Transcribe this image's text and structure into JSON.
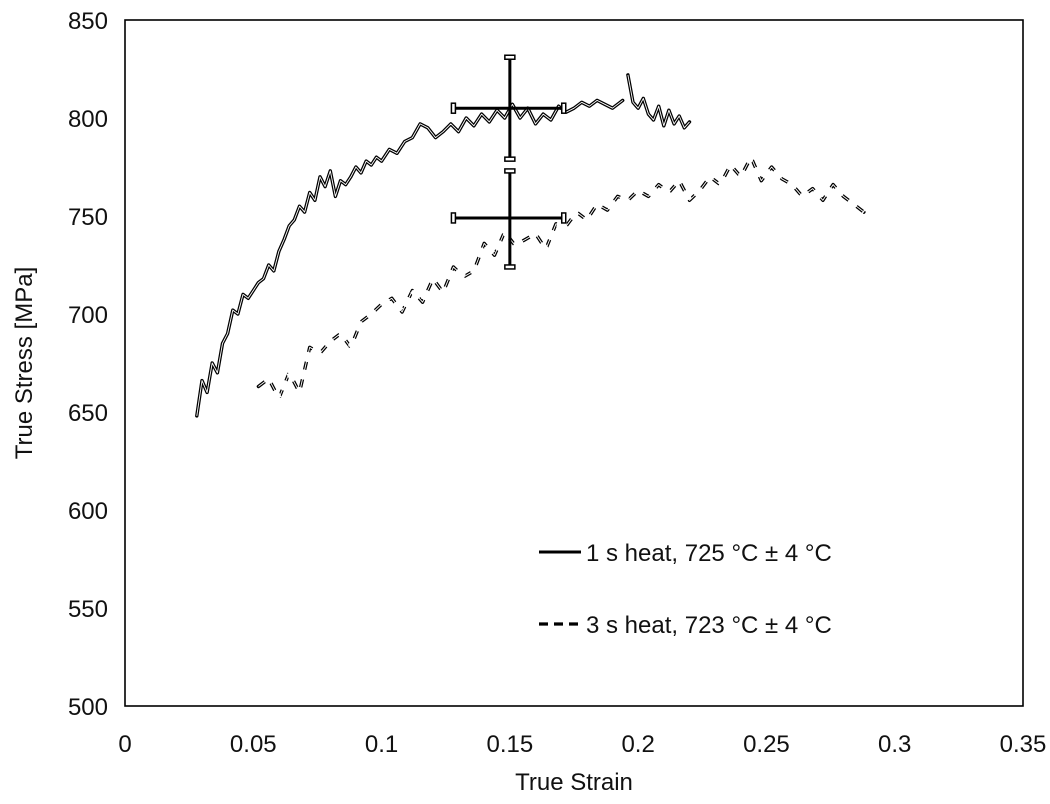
{
  "chart_data": {
    "type": "line",
    "xlabel": "True Strain",
    "ylabel": "True Stress [MPa]",
    "xlim": [
      0,
      0.35
    ],
    "ylim": [
      500,
      850
    ],
    "x_ticks": [
      0,
      0.05,
      0.1,
      0.15,
      0.2,
      0.25,
      0.3,
      0.35
    ],
    "x_tick_labels": [
      "0",
      "0.05",
      "0.1",
      "0.15",
      "0.2",
      "0.25",
      "0.3",
      "0.35"
    ],
    "y_ticks": [
      500,
      550,
      600,
      650,
      700,
      750,
      800,
      850
    ],
    "y_tick_labels": [
      "500",
      "550",
      "600",
      "650",
      "700",
      "750",
      "800",
      "850"
    ],
    "grid": false,
    "legend_position": "lower-right",
    "series": [
      {
        "name": "1 s heat, 725 °C ± 4 °C",
        "style": "solid",
        "color": "#000000",
        "x": [
          0.028,
          0.03,
          0.032,
          0.034,
          0.036,
          0.038,
          0.04,
          0.042,
          0.044,
          0.046,
          0.048,
          0.05,
          0.052,
          0.054,
          0.056,
          0.058,
          0.06,
          0.062,
          0.064,
          0.066,
          0.068,
          0.07,
          0.072,
          0.074,
          0.076,
          0.078,
          0.08,
          0.082,
          0.084,
          0.086,
          0.088,
          0.09,
          0.092,
          0.094,
          0.096,
          0.098,
          0.1,
          0.103,
          0.106,
          0.109,
          0.112,
          0.115,
          0.118,
          0.121,
          0.124,
          0.127,
          0.13,
          0.133,
          0.136,
          0.139,
          0.142,
          0.145,
          0.148,
          0.151,
          0.154,
          0.157,
          0.16,
          0.163,
          0.166,
          0.169,
          0.172,
          0.175,
          0.178,
          0.181,
          0.184,
          0.187,
          0.19,
          0.193,
          0.194
        ],
        "y": [
          648,
          666,
          660,
          675,
          670,
          685,
          690,
          702,
          700,
          710,
          708,
          712,
          716,
          718,
          725,
          722,
          732,
          738,
          745,
          748,
          755,
          752,
          762,
          758,
          770,
          765,
          773,
          760,
          768,
          766,
          770,
          775,
          772,
          778,
          776,
          780,
          778,
          784,
          782,
          788,
          790,
          797,
          795,
          790,
          793,
          797,
          793,
          800,
          796,
          802,
          798,
          804,
          800,
          807,
          800,
          805,
          797,
          802,
          799,
          806,
          803,
          805,
          808,
          806,
          809,
          807,
          805,
          808,
          809
        ]
      },
      {
        "name": "",
        "style": "solid",
        "color": "#000000",
        "x": [
          0.196,
          0.198,
          0.2,
          0.202,
          0.204,
          0.206,
          0.208,
          0.21,
          0.212,
          0.214,
          0.216,
          0.218,
          0.22
        ],
        "y": [
          822,
          808,
          805,
          810,
          802,
          799,
          806,
          796,
          804,
          797,
          801,
          795,
          798
        ]
      },
      {
        "name": "3 s heat, 723 °C ± 4 °C",
        "style": "dashed",
        "color": "#000000",
        "x": [
          0.052,
          0.056,
          0.06,
          0.064,
          0.068,
          0.072,
          0.076,
          0.08,
          0.084,
          0.088,
          0.092,
          0.096,
          0.1,
          0.104,
          0.108,
          0.112,
          0.116,
          0.12,
          0.124,
          0.128,
          0.132,
          0.136,
          0.14,
          0.144,
          0.148,
          0.152,
          0.156,
          0.16,
          0.164,
          0.168,
          0.172,
          0.176,
          0.18,
          0.184,
          0.188,
          0.192,
          0.196,
          0.2,
          0.204,
          0.208,
          0.212,
          0.216,
          0.22,
          0.224,
          0.228,
          0.232,
          0.236,
          0.24,
          0.244,
          0.248,
          0.252,
          0.256,
          0.26,
          0.264,
          0.268,
          0.272,
          0.276,
          0.28,
          0.284,
          0.288
        ],
        "y": [
          663,
          667,
          657,
          670,
          660,
          683,
          680,
          686,
          690,
          683,
          696,
          700,
          705,
          708,
          701,
          712,
          706,
          718,
          711,
          724,
          719,
          722,
          736,
          730,
          742,
          735,
          738,
          741,
          733,
          746,
          745,
          752,
          748,
          756,
          753,
          760,
          758,
          763,
          760,
          766,
          762,
          768,
          758,
          763,
          770,
          766,
          776,
          770,
          780,
          768,
          775,
          769,
          766,
          760,
          764,
          758,
          766,
          760,
          756,
          752
        ]
      }
    ],
    "error_bars": [
      {
        "x": 0.15,
        "y": 805,
        "xerr": [
          0.128,
          0.171
        ],
        "yerr": [
          779,
          831
        ]
      },
      {
        "x": 0.15,
        "y": 749,
        "xerr": [
          0.128,
          0.171
        ],
        "yerr": [
          724,
          773
        ]
      }
    ]
  }
}
